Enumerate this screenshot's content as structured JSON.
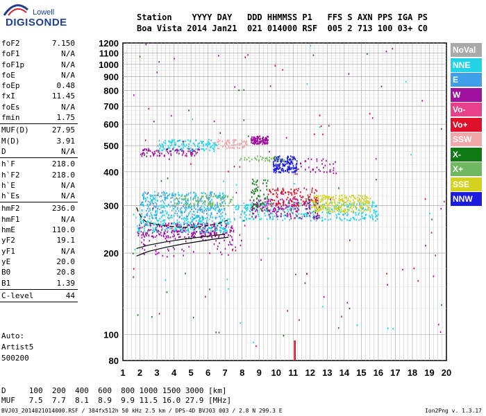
{
  "logo": {
    "top": "Lowell",
    "main": "DIGISONDE"
  },
  "header": {
    "line1": "Station    YYYY DAY   DDD HHMMSS P1   FFS S AXN PPS IGA PS",
    "line2": "Boa Vista 2014 Jan21  021 014000 RSF  005 2 713 100 03+ C0"
  },
  "params": [
    {
      "k": "foF2",
      "v": "7.150"
    },
    {
      "k": "foF1",
      "v": "N/A"
    },
    {
      "k": "foF1p",
      "v": "N/A"
    },
    {
      "k": "foE",
      "v": "N/A"
    },
    {
      "k": "foEp",
      "v": "0.48"
    },
    {
      "k": "fxI",
      "v": "11.45"
    },
    {
      "k": "foEs",
      "v": "N/A"
    },
    {
      "k": "fmin",
      "v": "1.75"
    },
    {
      "sep": true
    },
    {
      "k": "MUF(D)",
      "v": "27.95"
    },
    {
      "k": "M(D)",
      "v": "3.91"
    },
    {
      "k": "D",
      "v": "N/A"
    },
    {
      "sep": true
    },
    {
      "k": "h`F",
      "v": "218.0"
    },
    {
      "k": "h`F2",
      "v": "218.0"
    },
    {
      "k": "h`E",
      "v": "N/A"
    },
    {
      "k": "h`Es",
      "v": "N/A"
    },
    {
      "sep": true
    },
    {
      "k": "hmF2",
      "v": "236.0"
    },
    {
      "k": "hmF1",
      "v": "N/A"
    },
    {
      "k": "hmE",
      "v": "110.0"
    },
    {
      "k": "yF2",
      "v": "19.1"
    },
    {
      "k": "yF1",
      "v": "N/A"
    },
    {
      "k": "yE",
      "v": "20.0"
    },
    {
      "k": "B0",
      "v": "20.8"
    },
    {
      "k": "B1",
      "v": "1.39"
    },
    {
      "sep": true
    },
    {
      "k": "C-level",
      "v": "44"
    },
    {
      "sep": true
    }
  ],
  "auto": [
    "Auto:",
    "Artist5",
    "500200"
  ],
  "legend": [
    {
      "label": "NoVal",
      "color": "#a9a9a9"
    },
    {
      "label": "NNE",
      "color": "#22d3e6"
    },
    {
      "label": "E",
      "color": "#3f9fe8"
    },
    {
      "label": "W",
      "color": "#a0109e"
    },
    {
      "label": "Vo-",
      "color": "#e8408a"
    },
    {
      "label": "Vo+",
      "color": "#e0102a"
    },
    {
      "label": "SSW",
      "color": "#f2a8a8"
    },
    {
      "label": "X-",
      "color": "#0f7a14"
    },
    {
      "label": "X+",
      "color": "#6fb85f"
    },
    {
      "label": "SSE",
      "color": "#d3d21e"
    },
    {
      "label": "NNW",
      "color": "#1a1ae0"
    }
  ],
  "table": {
    "d_row": "D     100  200  400  600  800 1000 1500 3000 [km]",
    "muf_row": "MUF   7.5  7.7  8.1  8.9  9.9 11.5 16.0 27.9 [MHz]"
  },
  "footer": {
    "left": "BVJ03_2014021014000.RSF / 384fx512h 50 kHz 2.5 km / DPS-4D BVJ03 003 / 2.8 N 299.3 E",
    "right": "Ion2Png v. 1.3.17"
  },
  "chart_data": {
    "type": "scatter",
    "title": "",
    "xlabel": "",
    "ylabel": "",
    "xlim": [
      1,
      20
    ],
    "ylim": [
      80,
      1200
    ],
    "x_ticks": [
      1,
      2,
      3,
      4,
      5,
      6,
      7,
      8,
      9,
      10,
      11,
      12,
      13,
      14,
      15,
      16,
      17,
      18,
      19,
      20
    ],
    "y_ticks": [
      80,
      100,
      200,
      300,
      400,
      500,
      600,
      700,
      800,
      900,
      1000,
      1100,
      1200
    ],
    "y_scale": "log",
    "grid": true,
    "traces": {
      "o_trace_upper": [
        [
          1.8,
          208
        ],
        [
          2.5,
          214
        ],
        [
          3.5,
          220
        ],
        [
          4.5,
          225
        ],
        [
          5.5,
          229
        ],
        [
          6.5,
          233
        ],
        [
          7.0,
          235
        ]
      ],
      "o_trace_lower": [
        [
          1.8,
          195
        ],
        [
          2.5,
          203
        ],
        [
          3.5,
          210
        ],
        [
          4.5,
          216
        ],
        [
          5.5,
          221
        ],
        [
          6.5,
          226
        ],
        [
          7.2,
          229
        ]
      ],
      "profile_dashed": [
        [
          1.8,
          295
        ],
        [
          1.9,
          285
        ],
        [
          2.1,
          270
        ],
        [
          2.4,
          260
        ],
        [
          3.0,
          255
        ],
        [
          3.6,
          252
        ],
        [
          4.2,
          250
        ],
        [
          4.8,
          249
        ],
        [
          5.4,
          250
        ],
        [
          6.0,
          253
        ],
        [
          6.6,
          257
        ],
        [
          7.15,
          265
        ]
      ],
      "marker_bar": {
        "x": 11.1,
        "from": 80,
        "to": 95
      }
    },
    "clusters": [
      {
        "x": [
          1.8,
          7.5
        ],
        "y": [
          230,
          260
        ],
        "color": "#a0109e",
        "n": 260
      },
      {
        "x": [
          1.8,
          7.3
        ],
        "y": [
          240,
          270
        ],
        "color": "#22d3e6",
        "n": 220
      },
      {
        "x": [
          2.0,
          7.0
        ],
        "y": [
          270,
          340
        ],
        "color": "#3f9fe8",
        "n": 260
      },
      {
        "x": [
          2.0,
          7.0
        ],
        "y": [
          270,
          340
        ],
        "color": "#22d3e6",
        "n": 200
      },
      {
        "x": [
          7.5,
          16.0
        ],
        "y": [
          265,
          310
        ],
        "color": "#22d3e6",
        "n": 330
      },
      {
        "x": [
          8.5,
          12.5
        ],
        "y": [
          270,
          320
        ],
        "color": "#a0109e",
        "n": 180
      },
      {
        "x": [
          9.5,
          12.5
        ],
        "y": [
          300,
          350
        ],
        "color": "#e0102a",
        "n": 120
      },
      {
        "x": [
          12.0,
          15.5
        ],
        "y": [
          285,
          330
        ],
        "color": "#d3d21e",
        "n": 260
      },
      {
        "x": [
          8.5,
          9.5
        ],
        "y": [
          290,
          380
        ],
        "color": "#0f7a14",
        "n": 60
      },
      {
        "x": [
          9.8,
          11.2
        ],
        "y": [
          400,
          460
        ],
        "color": "#1a1ae0",
        "n": 170
      },
      {
        "x": [
          8.5,
          9.5
        ],
        "y": [
          510,
          545
        ],
        "color": "#a0109e",
        "n": 110
      },
      {
        "x": [
          3.0,
          6.5
        ],
        "y": [
          480,
          530
        ],
        "color": "#22d3e6",
        "n": 140
      },
      {
        "x": [
          2.0,
          5.5
        ],
        "y": [
          460,
          490
        ],
        "color": "#a0109e",
        "n": 90
      },
      {
        "x": [
          6.5,
          8.3
        ],
        "y": [
          490,
          530
        ],
        "color": "#f2a8a8",
        "n": 70
      },
      {
        "x": [
          7.8,
          10.5
        ],
        "y": [
          440,
          460
        ],
        "color": "#6fb85f",
        "n": 40
      },
      {
        "x": [
          2.0,
          8.0
        ],
        "y": [
          195,
          240
        ],
        "color": "#a0109e",
        "n": 70
      },
      {
        "x": [
          4.0,
          7.5
        ],
        "y": [
          300,
          330
        ],
        "color": "#6fb85f",
        "n": 80
      },
      {
        "x": [
          11.0,
          13.5
        ],
        "y": [
          395,
          450
        ],
        "color": "#a0109e",
        "n": 40
      },
      {
        "x": [
          1.5,
          20.0
        ],
        "y": [
          90,
          1200
        ],
        "color": "#a0109e",
        "n": 60
      },
      {
        "x": [
          1.5,
          20.0
        ],
        "y": [
          90,
          1200
        ],
        "color": "#0f7a14",
        "n": 30
      },
      {
        "x": [
          1.5,
          20.0
        ],
        "y": [
          90,
          1200
        ],
        "color": "#e0102a",
        "n": 30
      },
      {
        "x": [
          1.5,
          20.0
        ],
        "y": [
          90,
          1200
        ],
        "color": "#22d3e6",
        "n": 25
      }
    ]
  }
}
